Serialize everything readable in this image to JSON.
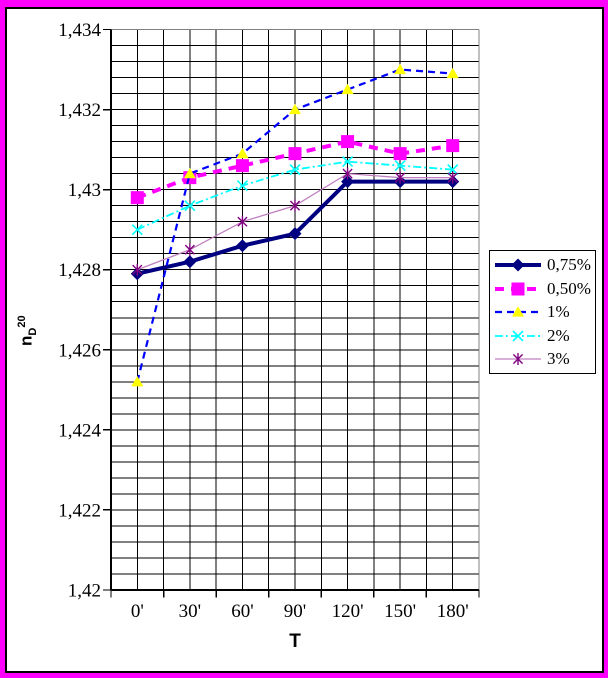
{
  "chart": {
    "frame_color": "#FF00FF",
    "inner_background": "#FFFFFF",
    "grid_color": "#000000",
    "plot_border_color": "#808080",
    "axis_color": "#000000",
    "y_axis": {
      "title": {
        "base": "n",
        "sub": "D",
        "sup": "20"
      },
      "min": 1.42,
      "max": 1.434,
      "major_step": 0.002,
      "minor_step": 0.0004,
      "tick_labels": [
        "1,434",
        "1,432",
        "1,43",
        "1,428",
        "1,426",
        "1,424",
        "1,422",
        "1,42"
      ]
    },
    "x_axis": {
      "title": "T",
      "tick_labels": [
        "0'",
        "30'",
        "60'",
        "90'",
        "120'",
        "150'",
        "180'"
      ]
    }
  },
  "chart_data": {
    "type": "line",
    "title": "",
    "xlabel": "T",
    "ylabel": "nD20",
    "ylim": [
      1.42,
      1.434
    ],
    "grid": true,
    "legend_position": "right",
    "categories": [
      "0'",
      "30'",
      "60'",
      "90'",
      "120'",
      "150'",
      "180'"
    ],
    "categories_minutes": [
      0,
      30,
      60,
      90,
      120,
      150,
      180
    ],
    "series": [
      {
        "name": "0,75%",
        "values": [
          1.4279,
          1.4282,
          1.4286,
          1.4289,
          1.4302,
          1.4302,
          1.4302
        ],
        "line_color": "#000080",
        "marker": "diamond",
        "marker_color": "#000080",
        "line_width": 4,
        "dash": "solid"
      },
      {
        "name": "0,50%",
        "values": [
          1.4298,
          1.4303,
          1.4306,
          1.4309,
          1.4312,
          1.4309,
          1.4311
        ],
        "line_color": "#FF00FF",
        "marker": "square",
        "marker_color": "#FF00FF",
        "line_width": 4,
        "dash": "dashed"
      },
      {
        "name": "1%",
        "values": [
          1.4252,
          1.4304,
          1.4309,
          1.432,
          1.4325,
          1.433,
          1.4329
        ],
        "line_color": "#0000FF",
        "marker": "triangle",
        "marker_color": "#FFFF00",
        "line_width": 2.2,
        "dash": "dashed"
      },
      {
        "name": "2%",
        "values": [
          1.429,
          1.4296,
          1.4301,
          1.4305,
          1.4307,
          1.4306,
          1.4305
        ],
        "line_color": "#00FFFF",
        "marker": "x",
        "marker_color": "#00FFFF",
        "line_width": 1.8,
        "dash": "dashdot"
      },
      {
        "name": "3%",
        "values": [
          1.428,
          1.4285,
          1.4292,
          1.4296,
          1.4304,
          1.4303,
          1.4303
        ],
        "line_color": "#BF7FBF",
        "marker": "asterisk",
        "marker_color": "#800080",
        "line_width": 1.3,
        "dash": "solid"
      }
    ]
  }
}
